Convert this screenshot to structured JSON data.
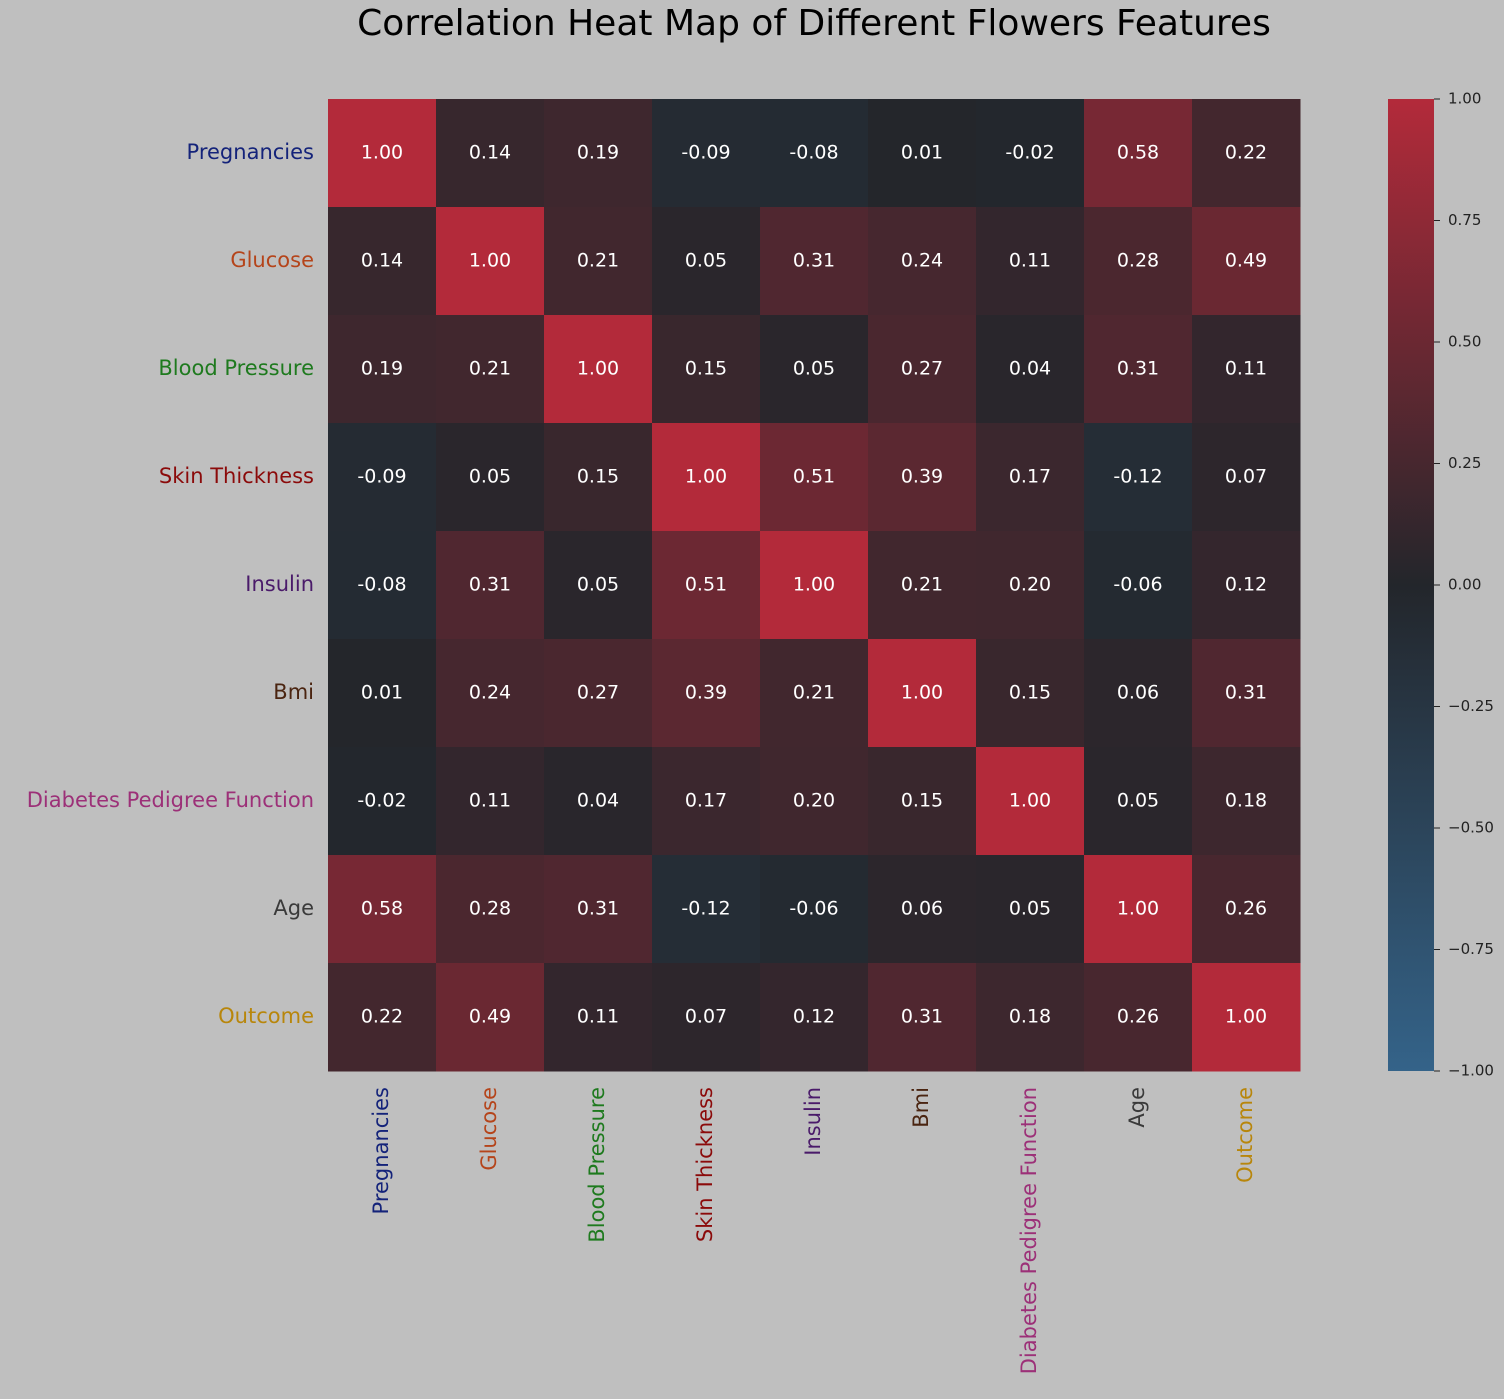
{
  "chart_data": {
    "type": "heatmap",
    "title": "Correlation Heat Map of Different Flowers Features",
    "categories": [
      "Pregnancies",
      "Glucose",
      "Blood Pressure",
      "Skin Thickness",
      "Insulin",
      "Bmi",
      "Diabetes Pedigree Function",
      "Age",
      "Outcome"
    ],
    "category_colors": [
      "#14237a",
      "#b5441a",
      "#1e7a1e",
      "#8b0a0a",
      "#4a1a6a",
      "#4a2410",
      "#9c3078",
      "#3a3a3a",
      "#b8860b"
    ],
    "values": [
      [
        1.0,
        0.14,
        0.19,
        -0.09,
        -0.08,
        0.01,
        -0.02,
        0.58,
        0.22
      ],
      [
        0.14,
        1.0,
        0.21,
        0.05,
        0.31,
        0.24,
        0.11,
        0.28,
        0.49
      ],
      [
        0.19,
        0.21,
        1.0,
        0.15,
        0.05,
        0.27,
        0.04,
        0.31,
        0.11
      ],
      [
        -0.09,
        0.05,
        0.15,
        1.0,
        0.51,
        0.39,
        0.17,
        -0.12,
        0.07
      ],
      [
        -0.08,
        0.31,
        0.05,
        0.51,
        1.0,
        0.21,
        0.2,
        -0.06,
        0.12
      ],
      [
        0.01,
        0.24,
        0.27,
        0.39,
        0.21,
        1.0,
        0.15,
        0.06,
        0.31
      ],
      [
        -0.02,
        0.11,
        0.04,
        0.17,
        0.2,
        0.15,
        1.0,
        0.05,
        0.18
      ],
      [
        0.58,
        0.28,
        0.31,
        -0.12,
        -0.06,
        0.06,
        0.05,
        1.0,
        0.26
      ],
      [
        0.22,
        0.49,
        0.11,
        0.07,
        0.12,
        0.31,
        0.18,
        0.26,
        1.0
      ]
    ],
    "value_labels": [
      [
        "1.00",
        "0.14",
        "0.19",
        "-0.09",
        "-0.08",
        "0.01",
        "-0.02",
        "0.58",
        "0.22"
      ],
      [
        "0.14",
        "1.00",
        "0.21",
        "0.05",
        "0.31",
        "0.24",
        "0.11",
        "0.28",
        "0.49"
      ],
      [
        "0.19",
        "0.21",
        "1.00",
        "0.15",
        "0.05",
        "0.27",
        "0.04",
        "0.31",
        "0.11"
      ],
      [
        "-0.09",
        "0.05",
        "0.15",
        "1.00",
        "0.51",
        "0.39",
        "0.17",
        "-0.12",
        "0.07"
      ],
      [
        "-0.08",
        "0.31",
        "0.05",
        "0.51",
        "1.00",
        "0.21",
        "0.20",
        "-0.06",
        "0.12"
      ],
      [
        "0.01",
        "0.24",
        "0.27",
        "0.39",
        "0.21",
        "1.00",
        "0.15",
        "0.06",
        "0.31"
      ],
      [
        "-0.02",
        "0.11",
        "0.04",
        "0.17",
        "0.20",
        "0.15",
        "1.00",
        "0.05",
        "0.18"
      ],
      [
        "0.58",
        "0.28",
        "0.31",
        "-0.12",
        "-0.06",
        "0.06",
        "0.05",
        "1.00",
        "0.26"
      ],
      [
        "0.22",
        "0.49",
        "0.11",
        "0.07",
        "0.12",
        "0.31",
        "0.18",
        "0.26",
        "1.00"
      ]
    ],
    "colormap": [
      "#346389",
      "#23262b",
      "#b32a3a"
    ],
    "zlim": [
      -1,
      1
    ],
    "zticks": [
      {
        "value": 1,
        "label": "1.00"
      },
      {
        "value": 0.75,
        "label": "0.75"
      },
      {
        "value": 0.5,
        "label": "0.50"
      },
      {
        "value": 0.25,
        "label": "0.25"
      },
      {
        "value": 0,
        "label": "0.00"
      },
      {
        "value": -0.25,
        "label": "−0.25"
      },
      {
        "value": -0.5,
        "label": "−0.50"
      },
      {
        "value": -0.75,
        "label": "−0.75"
      },
      {
        "value": -1,
        "label": "−1.00"
      }
    ]
  }
}
